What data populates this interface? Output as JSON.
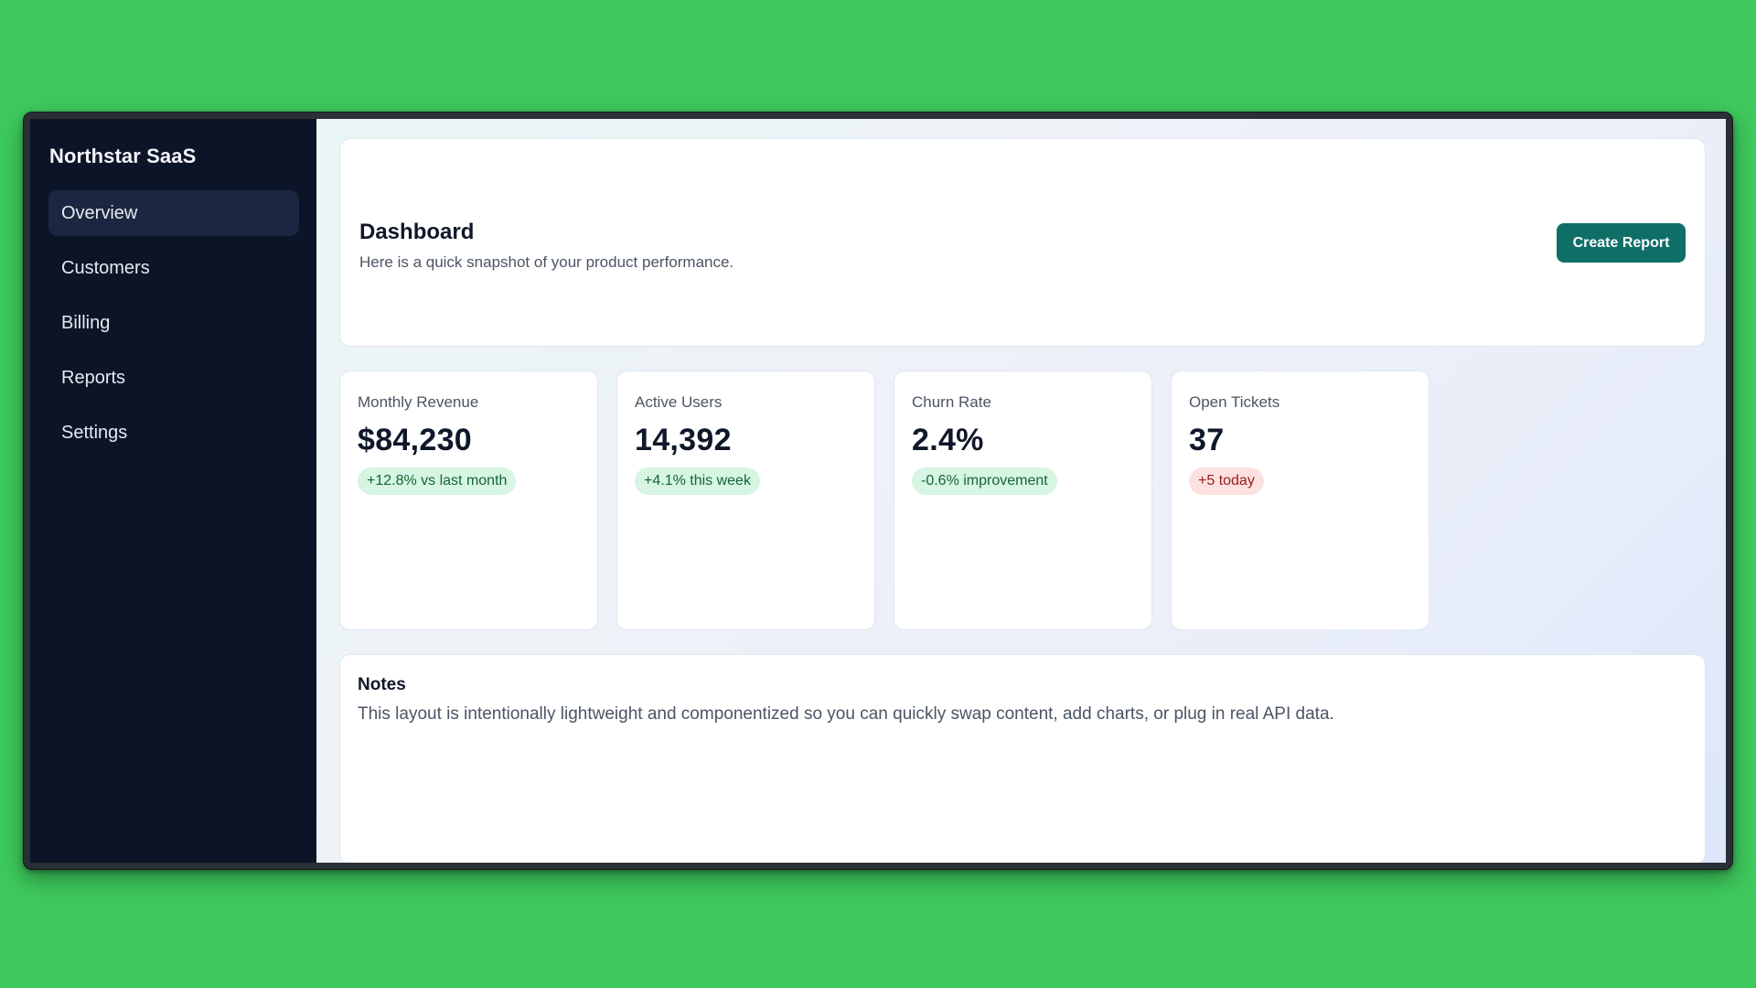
{
  "app": {
    "brand": "Northstar SaaS"
  },
  "sidebar": {
    "items": [
      {
        "label": "Overview",
        "active": true
      },
      {
        "label": "Customers",
        "active": false
      },
      {
        "label": "Billing",
        "active": false
      },
      {
        "label": "Reports",
        "active": false
      },
      {
        "label": "Settings",
        "active": false
      }
    ]
  },
  "header": {
    "title": "Dashboard",
    "subtitle": "Here is a quick snapshot of your product performance.",
    "create_button_label": "Create Report"
  },
  "metrics": [
    {
      "label": "Monthly Revenue",
      "value": "$84,230",
      "badge": "+12.8% vs last month",
      "trend": "good"
    },
    {
      "label": "Active Users",
      "value": "14,392",
      "badge": "+4.1% this week",
      "trend": "good"
    },
    {
      "label": "Churn Rate",
      "value": "2.4%",
      "badge": "-0.6% improvement",
      "trend": "good"
    },
    {
      "label": "Open Tickets",
      "value": "37",
      "badge": "+5 today",
      "trend": "bad"
    }
  ],
  "notes": {
    "title": "Notes",
    "text": "This layout is intentionally lightweight and componentized so you can quickly swap content, add charts, or plug in real API data."
  },
  "colors": {
    "page_background": "#3ec95d",
    "sidebar_background": "#0c1428",
    "sidebar_active": "#1b2740",
    "primary_button": "#0f6f67",
    "badge_good_bg": "#d6f5e3",
    "badge_good_text": "#166534",
    "badge_bad_bg": "#fde1e1",
    "badge_bad_text": "#991b1b"
  }
}
